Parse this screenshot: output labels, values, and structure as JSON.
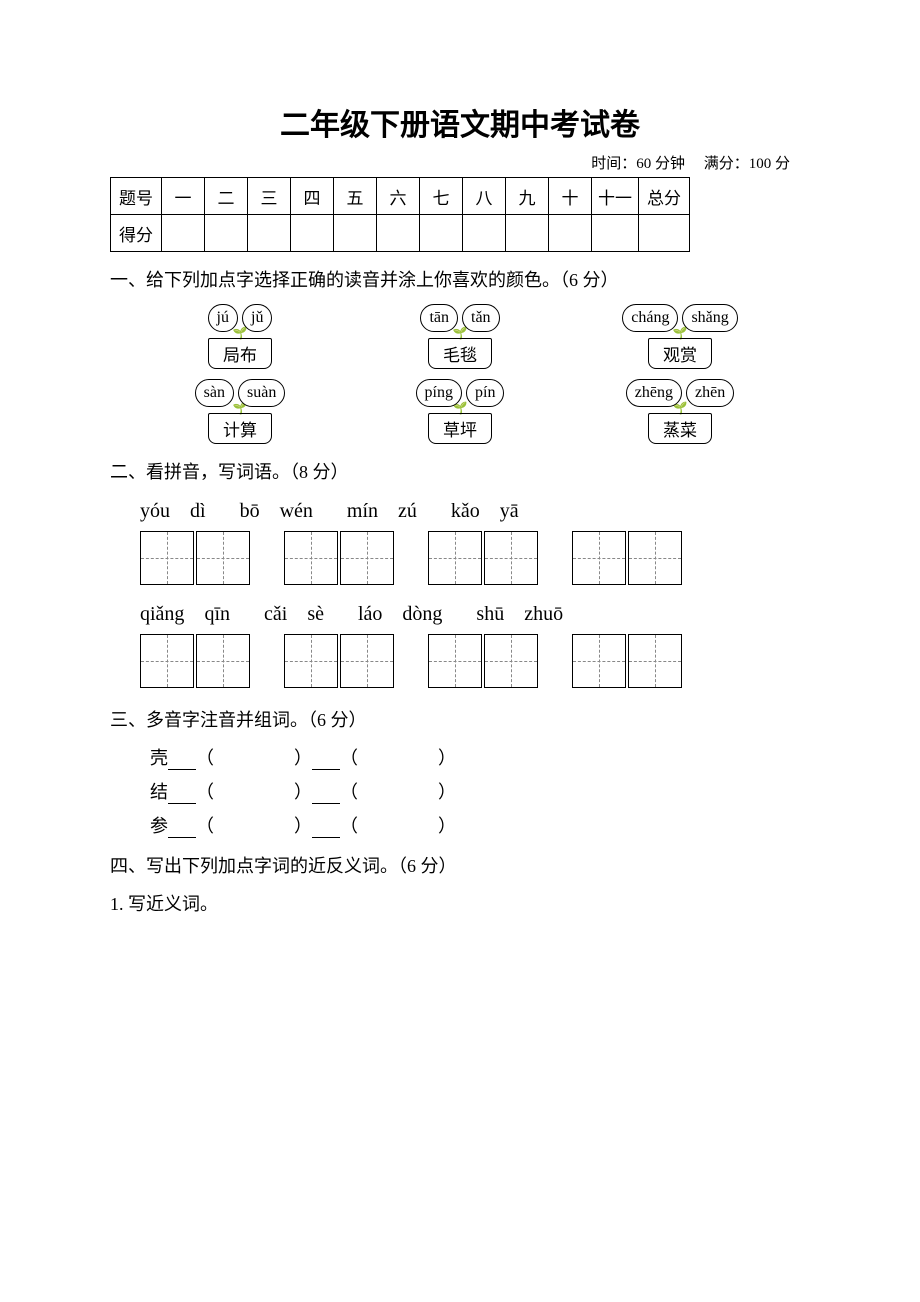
{
  "title": "二年级下册语文期中考试卷",
  "meta": {
    "time_label": "时间：60 分钟",
    "score_label": "满分：100 分"
  },
  "score_table": {
    "row1_label": "题号",
    "cols": [
      "一",
      "二",
      "三",
      "四",
      "五",
      "六",
      "七",
      "八",
      "九",
      "十",
      "十一",
      "总分"
    ],
    "row2_label": "得分"
  },
  "q1": {
    "heading": "一、给下列加点字选择正确的读音并涂上你喜欢的颜色。（6 分）",
    "items": [
      {
        "left": "jú",
        "right": "jǔ",
        "word": "局布"
      },
      {
        "left": "tān",
        "right": "tǎn",
        "word": "毛毯"
      },
      {
        "left": "cháng",
        "right": "shǎng",
        "word": "观赏"
      },
      {
        "left": "sàn",
        "right": "suàn",
        "word": "计算"
      },
      {
        "left": "píng",
        "right": "pín",
        "word": "草坪"
      },
      {
        "left": "zhēng",
        "right": "zhēn",
        "word": "蒸菜"
      }
    ]
  },
  "q2": {
    "heading": "二、看拼音，写词语。（8 分）",
    "row1": [
      [
        "yóu",
        "dì"
      ],
      [
        "bō",
        "wén"
      ],
      [
        "mín",
        "zú"
      ],
      [
        "kǎo",
        "yā"
      ]
    ],
    "row2": [
      [
        "qiǎng",
        "qīn"
      ],
      [
        "cǎi",
        "sè"
      ],
      [
        "láo",
        "dòng"
      ],
      [
        "shū",
        "zhuō"
      ]
    ]
  },
  "q3": {
    "heading": "三、多音字注音并组词。（6 分）",
    "chars": [
      "壳",
      "结",
      "参"
    ]
  },
  "q4": {
    "heading": "四、写出下列加点字词的近反义词。（6 分）",
    "sub1": "1. 写近义词。"
  },
  "colors": {
    "text": "#000000",
    "bg": "#ffffff",
    "dashed": "#888888"
  }
}
